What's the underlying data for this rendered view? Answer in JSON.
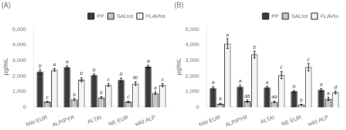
{
  "chart_data": [
    {
      "type": "bar",
      "title": "(A)",
      "categories": [
        "NW EUR",
        "ALP/PYR",
        "ALTAI",
        "NE EUR",
        "wild ALP"
      ],
      "series": [
        {
          "name": "PP",
          "color": "#3a3a3a",
          "values": [
            2280,
            2560,
            2060,
            1750,
            2600
          ],
          "errors": [
            130,
            90,
            80,
            120,
            90
          ],
          "annotations": [
            "b",
            "a",
            "b",
            "b",
            "a"
          ]
        },
        {
          "name": "SALtot",
          "color": "#c8c8c8",
          "values": [
            350,
            500,
            620,
            350,
            900
          ],
          "errors": [
            30,
            60,
            60,
            40,
            80
          ],
          "annotations": [
            "c",
            "b",
            "b",
            "c",
            "a"
          ]
        },
        {
          "name": "FLAVtot",
          "color": "#f5f5f5",
          "values": [
            2400,
            1760,
            1420,
            1520,
            1420
          ],
          "errors": [
            90,
            130,
            90,
            120,
            100
          ],
          "annotations": [
            "a",
            "b",
            "c",
            "bc",
            "c"
          ]
        }
      ],
      "y_label": "μg/mL",
      "ylim": [
        0,
        5200
      ],
      "yticks": [
        0,
        {
          "value": 1000,
          "label": "1,000"
        },
        {
          "value": 2000,
          "label": "2,000"
        },
        {
          "value": 3000,
          "label": "3,000"
        },
        {
          "value": 4000,
          "label": "4,000"
        },
        {
          "value": 5000,
          "label": "5,000"
        }
      ],
      "grid": false,
      "legend": "upper right"
    },
    {
      "type": "bar",
      "title": "(B)",
      "categories": [
        "NW EUR",
        "ALP/PYR",
        "ALTAI",
        "NE EUR",
        "wild ALP"
      ],
      "series": [
        {
          "name": "PP",
          "color": "#3a3a3a",
          "values": [
            1220,
            1310,
            1260,
            1010,
            1120
          ],
          "errors": [
            100,
            110,
            90,
            60,
            80
          ],
          "annotations": [
            "a",
            "a",
            "a",
            "b",
            "a"
          ]
        },
        {
          "name": "SALtot",
          "color": "#c8c8c8",
          "values": [
            220,
            390,
            340,
            160,
            530
          ],
          "errors": [
            40,
            80,
            50,
            30,
            100
          ],
          "annotations": [
            "b",
            "ab",
            "ab",
            "b",
            "a"
          ]
        },
        {
          "name": "FLAVto",
          "color": "#f5f5f5",
          "values": [
            4080,
            3380,
            2060,
            2570,
            950
          ],
          "errors": [
            320,
            220,
            230,
            240,
            90
          ],
          "annotations": [
            "a",
            "b",
            "c",
            "c",
            "d"
          ]
        }
      ],
      "y_label": "μg/mL",
      "ylim": [
        0,
        5200
      ],
      "yticks": [
        0,
        {
          "value": 1000,
          "label": "1,000"
        },
        {
          "value": 2000,
          "label": "2,000"
        },
        {
          "value": 3000,
          "label": "3,000"
        },
        {
          "value": 4000,
          "label": "4,000"
        },
        {
          "value": 5000,
          "label": "5,000"
        }
      ],
      "grid": false,
      "legend": "upper right"
    }
  ]
}
